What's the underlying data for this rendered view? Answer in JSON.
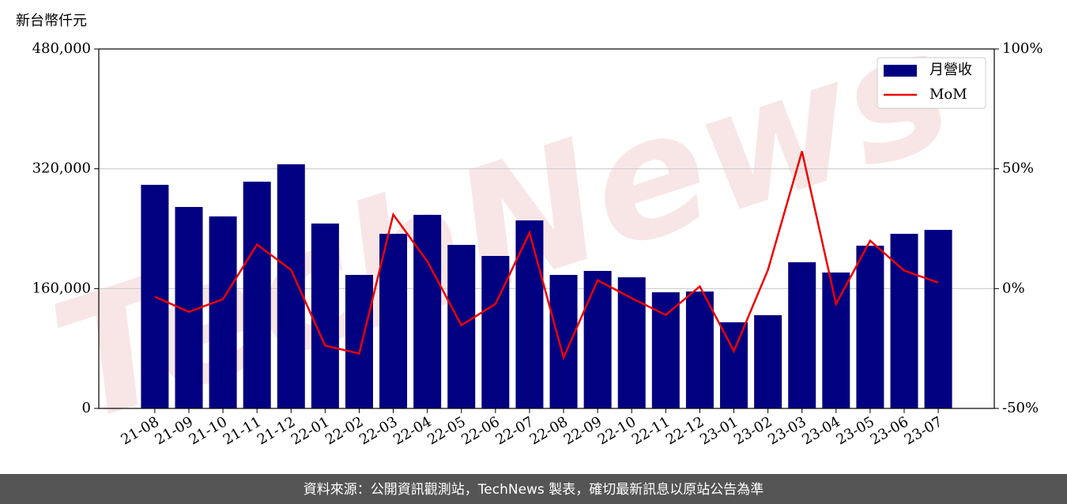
{
  "chart_data": {
    "type": "bar_line",
    "y_label": "新台幣仟元",
    "watermark": "TechNews",
    "footer": "資料來源：公開資訊觀測站，TechNews 製表，確切最新訊息以原站公告為準",
    "categories": [
      "21-08",
      "21-09",
      "21-10",
      "21-11",
      "21-12",
      "22-01",
      "22-02",
      "22-03",
      "22-04",
      "22-05",
      "22-06",
      "22-07",
      "22-08",
      "22-09",
      "22-10",
      "22-11",
      "22-12",
      "23-01",
      "23-02",
      "23-03",
      "23-04",
      "23-05",
      "23-06",
      "23-07"
    ],
    "series": [
      {
        "name": "月營收",
        "type": "bar",
        "color": "#000080",
        "values": [
          298600,
          269000,
          256400,
          302800,
          326000,
          246900,
          178300,
          233200,
          258500,
          218400,
          203600,
          251100,
          178300,
          183600,
          175100,
          155100,
          156100,
          115000,
          124500,
          195200,
          181500,
          217300,
          233200,
          238400
        ]
      },
      {
        "name": "MoM",
        "type": "line",
        "color": "#ee0000",
        "axis": "y2",
        "values": [
          -3.4,
          -9.7,
          -4.4,
          18.4,
          7.8,
          -23.8,
          -27.1,
          30.9,
          11.4,
          -15.3,
          -6.4,
          23.3,
          -28.8,
          3.5,
          -4.0,
          -11.0,
          0.9,
          -26.1,
          7.8,
          57.3,
          -6.4,
          20.0,
          7.5,
          2.5
        ]
      }
    ],
    "ylim": [
      0,
      480000
    ],
    "yticks": [
      {
        "value": 0,
        "label": "0"
      },
      {
        "value": 160000,
        "label": "160,000"
      },
      {
        "value": 320000,
        "label": "320,000"
      },
      {
        "value": 480000,
        "label": "480,000"
      }
    ],
    "y2lim": [
      -50,
      100
    ],
    "y2ticks": [
      {
        "value": -50,
        "label": "-50%"
      },
      {
        "value": 0,
        "label": "0%"
      },
      {
        "value": 50,
        "label": "50%"
      },
      {
        "value": 100,
        "label": "100%"
      }
    ],
    "grid": true,
    "legend": "upper right"
  }
}
